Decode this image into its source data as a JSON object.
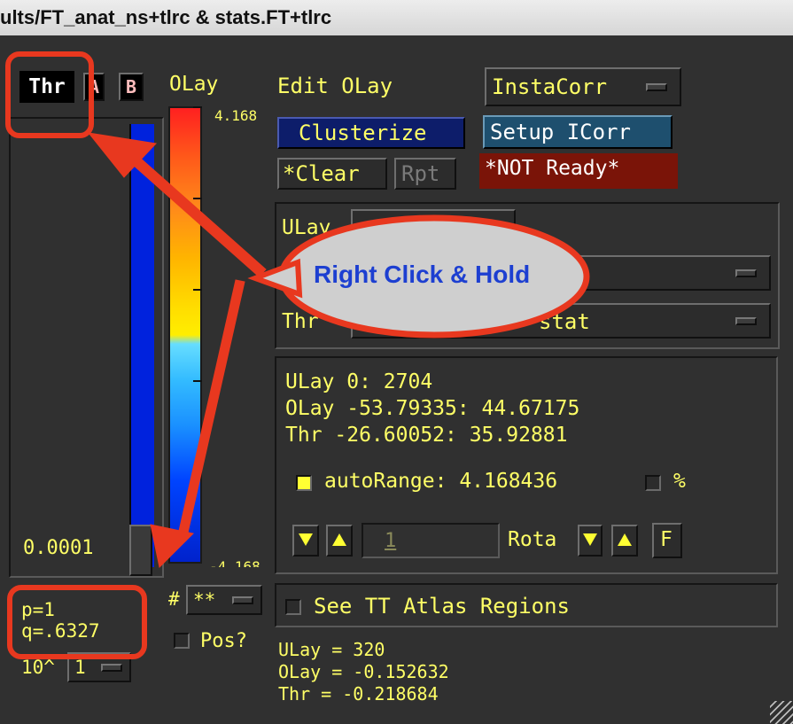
{
  "window": {
    "title": "ults/FT_anat_ns+tlrc & stats.FT+tlrc"
  },
  "threshold_panel": {
    "thr_label": "Thr",
    "a_button": "A",
    "b_button": "B",
    "slider_value": "0.0001",
    "p_value": "p=1",
    "q_value": "q=.6327",
    "exp_label": "10^",
    "exp_value": "1"
  },
  "colorbar": {
    "title": "OLay",
    "top_value": "4.168",
    "bottom_value": "-4.168",
    "hash_label": "#",
    "hash_menu": "**",
    "pos_label": "Pos?"
  },
  "controls": {
    "edit_olay": "Edit OLay",
    "instacorr": "InstaCorr",
    "clusterize": "Clusterize",
    "setup_icorr": "Setup ICorr",
    "clear": "*Clear",
    "rpt": "Rpt",
    "not_ready": "*NOT Ready*"
  },
  "choosers": {
    "ulay_label": "ULay",
    "thr_label": "Thr",
    "thr_value": "stat"
  },
  "info": {
    "ulay_line": "ULay           0:      2704",
    "olay_line": "OLay -53.79335: 44.67175",
    "thr_line": "Thr  -26.60052: 35.92881",
    "autorange": "autoRange: 4.168436",
    "percent": "%",
    "rota_value": "1",
    "rota_label": "Rota",
    "f_button": "F"
  },
  "atlas": {
    "label": "See TT Atlas Regions"
  },
  "readout": {
    "ulay": "ULay = 320",
    "olay": "OLay = -0.152632",
    "thr": "Thr  = -0.218684"
  },
  "annotation": {
    "callout": "Right Click & Hold"
  },
  "colors": {
    "accent_yellow": "#ffff66",
    "annotation_red": "#e8381f",
    "clusterize_bg": "#0d1d6a",
    "setup_bg": "#1e4f6e",
    "not_ready_bg": "#7a1408",
    "slider_blue": "#0022dd"
  }
}
